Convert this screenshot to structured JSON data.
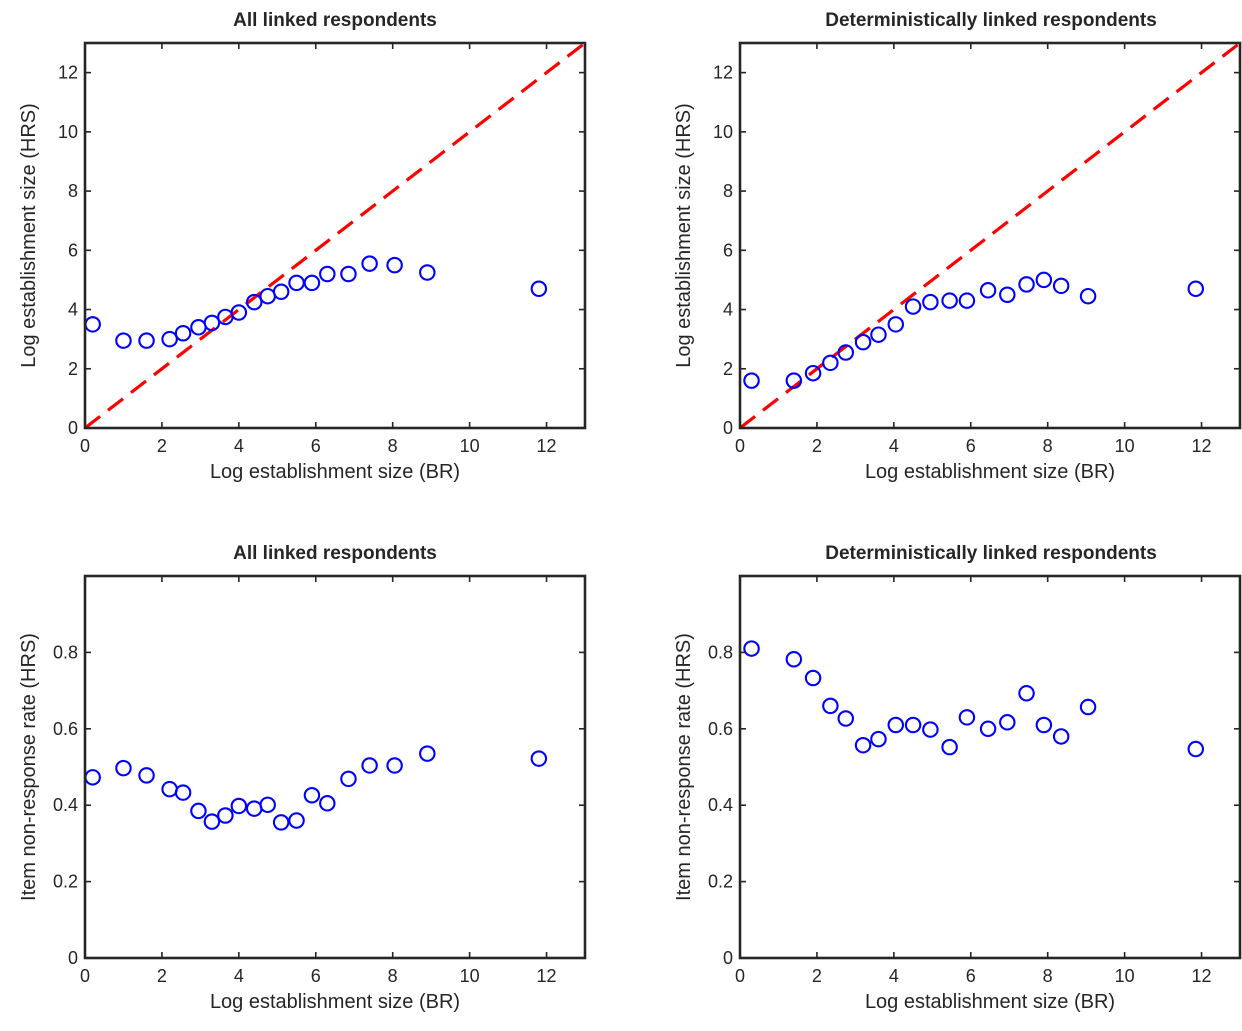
{
  "figure": {
    "panels": [
      {
        "title": "All linked respondents"
      },
      {
        "title": "Deterministically linked respondents"
      },
      {
        "title": "All linked respondents"
      },
      {
        "title": "Deterministically linked respondents"
      }
    ]
  },
  "chart_data": [
    {
      "type": "scatter",
      "title": "All linked respondents",
      "xlabel": "Log establishment size (BR)",
      "ylabel": "Log establishment size (HRS)",
      "xlim": [
        0,
        13
      ],
      "ylim": [
        0,
        13
      ],
      "xticks": [
        0,
        2,
        4,
        6,
        8,
        10,
        12
      ],
      "yticks": [
        0,
        2,
        4,
        6,
        8,
        10,
        12
      ],
      "ytick_labels": [
        "0",
        "2",
        "4",
        "6",
        "8",
        "10",
        "12"
      ],
      "reference_line": {
        "from": [
          0,
          0
        ],
        "to": [
          13,
          13
        ],
        "color": "#ff0000",
        "style": "dashed"
      },
      "marker_color": "#0000ff",
      "points": [
        [
          0.2,
          3.5
        ],
        [
          1.0,
          2.95
        ],
        [
          1.6,
          2.95
        ],
        [
          2.2,
          3.0
        ],
        [
          2.55,
          3.2
        ],
        [
          2.95,
          3.4
        ],
        [
          3.3,
          3.55
        ],
        [
          3.65,
          3.75
        ],
        [
          4.0,
          3.9
        ],
        [
          4.4,
          4.25
        ],
        [
          4.75,
          4.45
        ],
        [
          5.1,
          4.6
        ],
        [
          5.5,
          4.9
        ],
        [
          5.9,
          4.9
        ],
        [
          6.3,
          5.2
        ],
        [
          6.85,
          5.2
        ],
        [
          7.4,
          5.55
        ],
        [
          8.05,
          5.5
        ],
        [
          8.9,
          5.25
        ],
        [
          11.8,
          4.7
        ]
      ]
    },
    {
      "type": "scatter",
      "title": "Deterministically linked respondents",
      "xlabel": "Log establishment size (BR)",
      "ylabel": "Log establishment size (HRS)",
      "xlim": [
        0,
        13
      ],
      "ylim": [
        0,
        13
      ],
      "xticks": [
        0,
        2,
        4,
        6,
        8,
        10,
        12
      ],
      "yticks": [
        0,
        2,
        4,
        6,
        8,
        10,
        12
      ],
      "ytick_labels": [
        "0",
        "2",
        "4",
        "6",
        "8",
        "10",
        "12"
      ],
      "reference_line": {
        "from": [
          0,
          0
        ],
        "to": [
          13,
          13
        ],
        "color": "#ff0000",
        "style": "dashed"
      },
      "marker_color": "#0000ff",
      "points": [
        [
          0.3,
          1.6
        ],
        [
          1.4,
          1.6
        ],
        [
          1.9,
          1.85
        ],
        [
          2.35,
          2.2
        ],
        [
          2.75,
          2.55
        ],
        [
          3.2,
          2.9
        ],
        [
          3.6,
          3.15
        ],
        [
          4.05,
          3.5
        ],
        [
          4.5,
          4.1
        ],
        [
          4.95,
          4.25
        ],
        [
          5.45,
          4.3
        ],
        [
          5.9,
          4.3
        ],
        [
          6.45,
          4.65
        ],
        [
          6.95,
          4.5
        ],
        [
          7.45,
          4.85
        ],
        [
          7.9,
          5.0
        ],
        [
          8.35,
          4.8
        ],
        [
          9.05,
          4.45
        ],
        [
          11.85,
          4.7
        ]
      ]
    },
    {
      "type": "scatter",
      "title": "All linked respondents",
      "xlabel": "Log establishment size (BR)",
      "ylabel": "Item non-response rate (HRS)",
      "xlim": [
        0,
        13
      ],
      "ylim": [
        0,
        1
      ],
      "xticks": [
        0,
        2,
        4,
        6,
        8,
        10,
        12
      ],
      "yticks": [
        0,
        0.2,
        0.4,
        0.6,
        0.8
      ],
      "ytick_labels": [
        "0",
        "0.2",
        "0.4",
        "0.6",
        "0.8"
      ],
      "marker_color": "#0000ff",
      "points": [
        [
          0.2,
          0.473
        ],
        [
          1.0,
          0.497
        ],
        [
          1.6,
          0.478
        ],
        [
          2.2,
          0.442
        ],
        [
          2.55,
          0.433
        ],
        [
          2.95,
          0.385
        ],
        [
          3.3,
          0.357
        ],
        [
          3.65,
          0.373
        ],
        [
          4.0,
          0.398
        ],
        [
          4.4,
          0.391
        ],
        [
          4.75,
          0.401
        ],
        [
          5.1,
          0.355
        ],
        [
          5.5,
          0.36
        ],
        [
          5.9,
          0.426
        ],
        [
          6.3,
          0.405
        ],
        [
          6.85,
          0.469
        ],
        [
          7.4,
          0.504
        ],
        [
          8.05,
          0.504
        ],
        [
          8.9,
          0.535
        ],
        [
          11.8,
          0.522
        ]
      ]
    },
    {
      "type": "scatter",
      "title": "Deterministically linked respondents",
      "xlabel": "Log establishment size (BR)",
      "ylabel": "Item non-response rate (HRS)",
      "xlim": [
        0,
        13
      ],
      "ylim": [
        0,
        1
      ],
      "xticks": [
        0,
        2,
        4,
        6,
        8,
        10,
        12
      ],
      "yticks": [
        0,
        0.2,
        0.4,
        0.6,
        0.8
      ],
      "ytick_labels": [
        "0",
        "0.2",
        "0.4",
        "0.6",
        "0.8"
      ],
      "marker_color": "#0000ff",
      "points": [
        [
          0.3,
          0.81
        ],
        [
          1.4,
          0.782
        ],
        [
          1.9,
          0.733
        ],
        [
          2.35,
          0.66
        ],
        [
          2.75,
          0.627
        ],
        [
          3.2,
          0.557
        ],
        [
          3.6,
          0.573
        ],
        [
          4.05,
          0.61
        ],
        [
          4.5,
          0.61
        ],
        [
          4.95,
          0.598
        ],
        [
          5.45,
          0.552
        ],
        [
          5.9,
          0.63
        ],
        [
          6.45,
          0.6
        ],
        [
          6.95,
          0.617
        ],
        [
          7.45,
          0.693
        ],
        [
          7.9,
          0.61
        ],
        [
          8.35,
          0.58
        ],
        [
          9.05,
          0.657
        ],
        [
          11.85,
          0.547
        ]
      ]
    }
  ]
}
